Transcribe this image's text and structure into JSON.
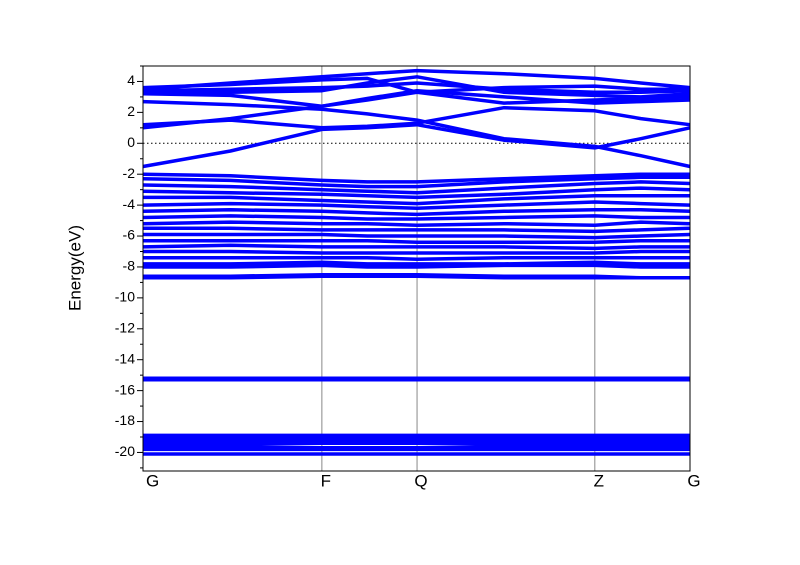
{
  "chart_data": {
    "type": "line",
    "ylabel": "Energy(eV)",
    "color": "#0000ff",
    "x": [
      0,
      0.16,
      0.327,
      0.41,
      0.501,
      0.66,
      0.826,
      0.91,
      1.0
    ],
    "xlim": [
      0,
      1
    ],
    "xticks": [
      {
        "value": 0,
        "label": "G"
      },
      {
        "value": 0.327,
        "label": "F"
      },
      {
        "value": 0.501,
        "label": "Q"
      },
      {
        "value": 0.826,
        "label": "Z"
      },
      {
        "value": 1.0,
        "label": "G"
      }
    ],
    "ylim": [
      -21.2,
      5
    ],
    "yticks": [
      -20,
      -18,
      -16,
      -14,
      -12,
      -10,
      -8,
      -6,
      -4,
      -2,
      0,
      2,
      4
    ],
    "yminorticks": [
      -21,
      -19,
      -17,
      -15,
      -13,
      -11,
      -9,
      -7,
      -5,
      -3,
      -1,
      1,
      3,
      5
    ],
    "reference_line": 0,
    "series": [
      {
        "values": [
          -1.5,
          -0.5,
          0.9,
          1.0,
          1.2,
          0.2,
          -0.3,
          0.3,
          1.0
        ]
      },
      {
        "values": [
          1.0,
          1.6,
          2.4,
          2.9,
          3.4,
          3.0,
          2.6,
          2.7,
          2.8
        ]
      },
      {
        "values": [
          1.2,
          1.5,
          1.0,
          1.1,
          1.3,
          2.3,
          2.1,
          1.6,
          1.2
        ]
      },
      {
        "values": [
          2.7,
          2.5,
          2.2,
          1.9,
          1.5,
          0.3,
          -0.2,
          -0.8,
          -1.5
        ]
      },
      {
        "values": [
          3.2,
          3.1,
          2.4,
          2.8,
          3.3,
          2.6,
          2.8,
          2.9,
          3.0
        ]
      },
      {
        "values": [
          3.4,
          3.5,
          3.6,
          3.7,
          3.9,
          3.5,
          3.3,
          3.3,
          3.4
        ]
      },
      {
        "values": [
          3.5,
          3.9,
          4.3,
          4.5,
          4.7,
          4.5,
          4.2,
          3.9,
          3.6
        ]
      },
      {
        "values": [
          3.3,
          3.3,
          3.4,
          3.9,
          4.3,
          3.3,
          3.1,
          3.0,
          3.2
        ]
      },
      {
        "values": [
          3.6,
          3.8,
          4.1,
          4.2,
          3.3,
          3.6,
          3.7,
          3.5,
          3.5
        ]
      },
      {
        "values": [
          -2.0,
          -2.1,
          -2.4,
          -2.5,
          -2.5,
          -2.3,
          -2.1,
          -2.0,
          -2.0
        ]
      },
      {
        "values": [
          -2.3,
          -2.4,
          -2.7,
          -2.8,
          -2.8,
          -2.5,
          -2.3,
          -2.2,
          -2.2
        ]
      },
      {
        "values": [
          -2.7,
          -2.8,
          -3.0,
          -3.1,
          -3.2,
          -2.9,
          -2.6,
          -2.5,
          -2.6
        ]
      },
      {
        "values": [
          -3.1,
          -3.2,
          -3.3,
          -3.4,
          -3.5,
          -3.3,
          -3.0,
          -2.9,
          -3.0
        ]
      },
      {
        "values": [
          -3.5,
          -3.5,
          -3.7,
          -3.8,
          -3.9,
          -3.6,
          -3.4,
          -3.4,
          -3.4
        ]
      },
      {
        "values": [
          -4.0,
          -3.9,
          -4.0,
          -4.1,
          -4.2,
          -4.0,
          -3.8,
          -3.9,
          -4.0
        ]
      },
      {
        "values": [
          -4.4,
          -4.3,
          -4.4,
          -4.5,
          -4.6,
          -4.4,
          -4.3,
          -4.3,
          -4.4
        ]
      },
      {
        "values": [
          -4.8,
          -4.7,
          -4.8,
          -4.9,
          -4.9,
          -4.8,
          -4.7,
          -4.8,
          -4.8
        ]
      },
      {
        "values": [
          -5.2,
          -5.1,
          -5.2,
          -5.2,
          -5.3,
          -5.2,
          -5.3,
          -5.1,
          -5.2
        ]
      },
      {
        "values": [
          -5.5,
          -5.5,
          -5.6,
          -5.6,
          -5.6,
          -5.6,
          -5.7,
          -5.6,
          -5.5
        ]
      },
      {
        "values": [
          -5.9,
          -5.9,
          -5.9,
          -6.0,
          -6.0,
          -6.0,
          -6.1,
          -6.0,
          -5.9
        ]
      },
      {
        "values": [
          -6.3,
          -6.3,
          -6.3,
          -6.3,
          -6.4,
          -6.4,
          -6.4,
          -6.3,
          -6.3
        ]
      },
      {
        "values": [
          -6.7,
          -6.6,
          -6.7,
          -6.7,
          -6.7,
          -6.7,
          -6.8,
          -6.7,
          -6.7
        ]
      },
      {
        "values": [
          -7.0,
          -7.0,
          -7.1,
          -7.1,
          -7.1,
          -7.1,
          -7.1,
          -7.0,
          -7.0
        ]
      },
      {
        "values": [
          -7.4,
          -7.4,
          -7.4,
          -7.4,
          -7.5,
          -7.4,
          -7.4,
          -7.4,
          -7.4
        ]
      },
      {
        "values": [
          -7.8,
          -7.8,
          -7.7,
          -7.8,
          -7.8,
          -7.8,
          -7.7,
          -7.8,
          -7.8
        ]
      },
      {
        "values": [
          -8.0,
          -8.0,
          -7.9,
          -8.0,
          -8.0,
          -7.9,
          -7.9,
          -8.0,
          -8.0
        ]
      },
      {
        "values": [
          -8.6,
          -8.6,
          -8.5,
          -8.5,
          -8.5,
          -8.6,
          -8.6,
          -8.7,
          -8.7
        ]
      },
      {
        "values": [
          -8.7,
          -8.7,
          -8.6,
          -8.6,
          -8.6,
          -8.7,
          -8.7,
          -8.7,
          -8.7
        ]
      },
      {
        "values": [
          -15.2,
          -15.2,
          -15.2,
          -15.2,
          -15.2,
          -15.2,
          -15.2,
          -15.2,
          -15.2
        ]
      },
      {
        "values": [
          -15.3,
          -15.3,
          -15.3,
          -15.3,
          -15.3,
          -15.3,
          -15.3,
          -15.3,
          -15.3
        ]
      },
      {
        "values": [
          -18.9,
          -18.9,
          -18.9,
          -18.9,
          -18.9,
          -18.9,
          -18.9,
          -18.9,
          -18.9
        ]
      },
      {
        "values": [
          -19.1,
          -19.1,
          -19.1,
          -19.1,
          -19.1,
          -19.1,
          -19.1,
          -19.1,
          -19.1
        ]
      },
      {
        "values": [
          -19.3,
          -19.3,
          -19.3,
          -19.3,
          -19.3,
          -19.3,
          -19.3,
          -19.3,
          -19.3
        ]
      },
      {
        "values": [
          -19.5,
          -19.5,
          -19.4,
          -19.4,
          -19.4,
          -19.5,
          -19.5,
          -19.5,
          -19.5
        ]
      },
      {
        "values": [
          -19.7,
          -19.7,
          -19.7,
          -19.7,
          -19.7,
          -19.7,
          -19.7,
          -19.7,
          -19.7
        ]
      },
      {
        "values": [
          -19.8,
          -19.8,
          -19.8,
          -19.8,
          -19.8,
          -19.8,
          -19.8,
          -19.8,
          -19.8
        ]
      },
      {
        "values": [
          -20.1,
          -20.1,
          -20.1,
          -20.1,
          -20.1,
          -20.1,
          -20.1,
          -20.1,
          -20.1
        ]
      }
    ]
  }
}
